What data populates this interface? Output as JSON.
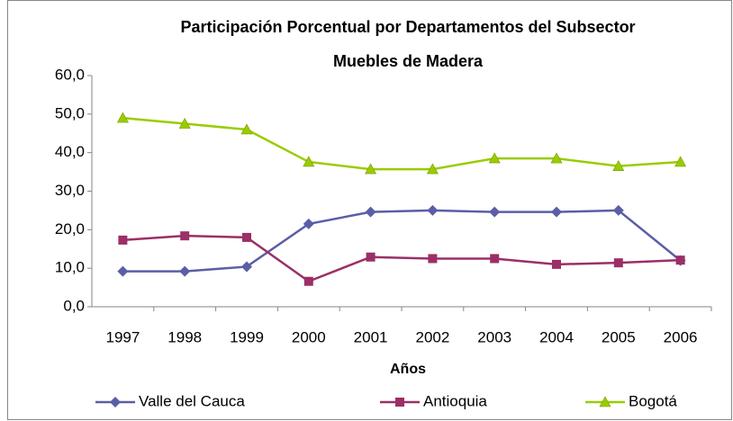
{
  "chart_data": {
    "type": "line",
    "title": [
      "Participación Porcentual por Departamentos del Subsector",
      "Muebles de Madera"
    ],
    "x_label": "Años",
    "categories": [
      "1997",
      "1998",
      "1999",
      "2000",
      "2001",
      "2002",
      "2003",
      "2004",
      "2005",
      "2006"
    ],
    "series": [
      {
        "name": "Valle del Cauca",
        "color": "#5b5ea6",
        "marker": "diamond",
        "values": [
          9.2,
          9.2,
          10.4,
          21.5,
          24.6,
          25.0,
          24.6,
          24.6,
          25.0,
          12.0
        ]
      },
      {
        "name": "Antioquia",
        "color": "#9b2f66",
        "marker": "square",
        "values": [
          17.3,
          18.4,
          18.0,
          6.6,
          12.9,
          12.5,
          12.5,
          11.0,
          11.4,
          12.1
        ]
      },
      {
        "name": "Bogotá",
        "color": "#99cc00",
        "marker": "triangle",
        "values": [
          49.0,
          47.5,
          46.0,
          37.6,
          35.7,
          35.7,
          38.5,
          38.5,
          36.5,
          37.6
        ]
      }
    ],
    "ylim": [
      0,
      60
    ],
    "yticks": [
      {
        "value": 0,
        "label": "0,0"
      },
      {
        "value": 10,
        "label": "10,0"
      },
      {
        "value": 20,
        "label": "20,0"
      },
      {
        "value": 30,
        "label": "30,0"
      },
      {
        "value": 40,
        "label": "40,0"
      },
      {
        "value": 50,
        "label": "50,0"
      },
      {
        "value": 60,
        "label": "60,0"
      }
    ],
    "grid": false,
    "legend": "bottom"
  }
}
